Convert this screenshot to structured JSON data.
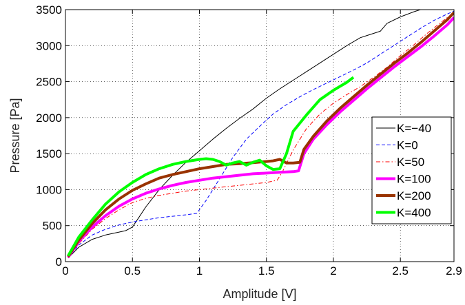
{
  "chart_data": {
    "type": "line",
    "title": "",
    "xlabel": "Amplitude [V]",
    "ylabel": "Pressure [Pa]",
    "xlim": [
      0,
      2.9
    ],
    "ylim": [
      0,
      3500
    ],
    "xticks": [
      0,
      0.5,
      1,
      1.5,
      2,
      2.5,
      2.9
    ],
    "xtick_labels": [
      "0",
      "0.5",
      "1",
      "1.5",
      "2",
      "2.5",
      "2.9"
    ],
    "yticks": [
      0,
      500,
      1000,
      1500,
      2000,
      2500,
      3000,
      3500
    ],
    "ytick_labels": [
      "0",
      "500",
      "1000",
      "1500",
      "2000",
      "2500",
      "3000",
      "3500"
    ],
    "grid": true,
    "legend_position": "right",
    "series": [
      {
        "name": "K=−40",
        "color": "#000000",
        "line_style": "solid",
        "line_width": 1,
        "x": [
          0.02,
          0.1,
          0.2,
          0.3,
          0.4,
          0.45,
          0.5,
          0.55,
          0.6,
          0.7,
          0.8,
          0.9,
          1.0,
          1.1,
          1.2,
          1.3,
          1.4,
          1.5,
          1.6,
          1.7,
          1.8,
          1.9,
          2.0,
          2.1,
          2.2,
          2.25,
          2.3,
          2.35,
          2.4,
          2.5,
          2.6,
          2.7,
          2.8
        ],
        "y": [
          50,
          200,
          310,
          370,
          410,
          430,
          480,
          620,
          760,
          1000,
          1200,
          1380,
          1540,
          1700,
          1850,
          1990,
          2120,
          2270,
          2400,
          2520,
          2640,
          2760,
          2880,
          3000,
          3110,
          3140,
          3170,
          3200,
          3310,
          3400,
          3470,
          3530,
          3580
        ]
      },
      {
        "name": "K=0",
        "color": "#0000ff",
        "line_style": "dashed",
        "line_width": 1,
        "x": [
          0.02,
          0.1,
          0.2,
          0.3,
          0.4,
          0.5,
          0.6,
          0.7,
          0.8,
          0.9,
          0.98,
          1.05,
          1.15,
          1.25,
          1.35,
          1.45,
          1.55,
          1.65,
          1.75,
          1.85,
          1.95,
          2.05,
          2.15,
          2.25,
          2.35,
          2.45,
          2.55,
          2.65,
          2.75,
          2.85,
          2.9
        ],
        "y": [
          50,
          230,
          370,
          450,
          510,
          550,
          580,
          610,
          630,
          650,
          670,
          850,
          1150,
          1450,
          1700,
          1880,
          2050,
          2180,
          2290,
          2390,
          2480,
          2570,
          2660,
          2760,
          2880,
          3000,
          3120,
          3240,
          3350,
          3440,
          3480
        ]
      },
      {
        "name": "K=50",
        "color": "#ff0000",
        "line_style": "dashdot",
        "line_width": 1,
        "x": [
          0.02,
          0.1,
          0.2,
          0.3,
          0.4,
          0.5,
          0.6,
          0.7,
          0.8,
          0.9,
          1.0,
          1.1,
          1.2,
          1.3,
          1.4,
          1.5,
          1.58,
          1.62,
          1.7,
          1.8,
          1.9,
          2.0,
          2.1,
          2.2,
          2.3,
          2.4,
          2.5,
          2.6,
          2.7,
          2.8,
          2.9
        ],
        "y": [
          50,
          250,
          450,
          600,
          720,
          820,
          880,
          920,
          950,
          980,
          1000,
          1020,
          1040,
          1060,
          1080,
          1100,
          1130,
          1250,
          1550,
          1850,
          2050,
          2200,
          2320,
          2430,
          2560,
          2700,
          2860,
          3010,
          3170,
          3320,
          3460
        ]
      },
      {
        "name": "K=100",
        "color": "#ff00ff",
        "line_style": "solid",
        "line_width": 4,
        "x": [
          0.02,
          0.1,
          0.2,
          0.3,
          0.4,
          0.5,
          0.6,
          0.7,
          0.8,
          0.9,
          1.0,
          1.1,
          1.2,
          1.3,
          1.4,
          1.5,
          1.6,
          1.7,
          1.74,
          1.78,
          1.85,
          1.95,
          2.05,
          2.15,
          2.25,
          2.35,
          2.45,
          2.55,
          2.65,
          2.75,
          2.85,
          2.9
        ],
        "y": [
          60,
          280,
          480,
          640,
          770,
          870,
          950,
          1010,
          1060,
          1100,
          1130,
          1160,
          1180,
          1200,
          1220,
          1230,
          1240,
          1250,
          1260,
          1500,
          1700,
          1900,
          2080,
          2240,
          2400,
          2550,
          2700,
          2840,
          2980,
          3130,
          3290,
          3390
        ]
      },
      {
        "name": "K=200",
        "color": "#993300",
        "line_style": "solid",
        "line_width": 4,
        "x": [
          0.02,
          0.1,
          0.2,
          0.3,
          0.4,
          0.5,
          0.6,
          0.7,
          0.8,
          0.9,
          1.0,
          1.1,
          1.2,
          1.3,
          1.4,
          1.5,
          1.55,
          1.6,
          1.65,
          1.7,
          1.75,
          1.78,
          1.85,
          1.95,
          2.05,
          2.15,
          2.25,
          2.35,
          2.45,
          2.55,
          2.65,
          2.75,
          2.85,
          2.9
        ],
        "y": [
          70,
          300,
          530,
          720,
          870,
          990,
          1080,
          1160,
          1210,
          1250,
          1290,
          1320,
          1350,
          1360,
          1375,
          1390,
          1400,
          1420,
          1370,
          1370,
          1380,
          1560,
          1740,
          1950,
          2130,
          2290,
          2450,
          2600,
          2750,
          2890,
          3040,
          3200,
          3360,
          3460
        ]
      },
      {
        "name": "K=400",
        "color": "#00ff00",
        "line_style": "solid",
        "line_width": 4,
        "x": [
          0.02,
          0.1,
          0.2,
          0.3,
          0.4,
          0.5,
          0.6,
          0.7,
          0.8,
          0.9,
          1.0,
          1.05,
          1.1,
          1.15,
          1.2,
          1.25,
          1.3,
          1.35,
          1.4,
          1.45,
          1.5,
          1.55,
          1.6,
          1.65,
          1.7,
          1.8,
          1.9,
          2.0,
          2.1,
          2.15
        ],
        "y": [
          80,
          340,
          580,
          800,
          970,
          1100,
          1210,
          1290,
          1350,
          1390,
          1420,
          1430,
          1420,
          1390,
          1340,
          1370,
          1390,
          1340,
          1380,
          1410,
          1330,
          1280,
          1290,
          1500,
          1810,
          2040,
          2250,
          2380,
          2490,
          2560
        ]
      }
    ]
  }
}
